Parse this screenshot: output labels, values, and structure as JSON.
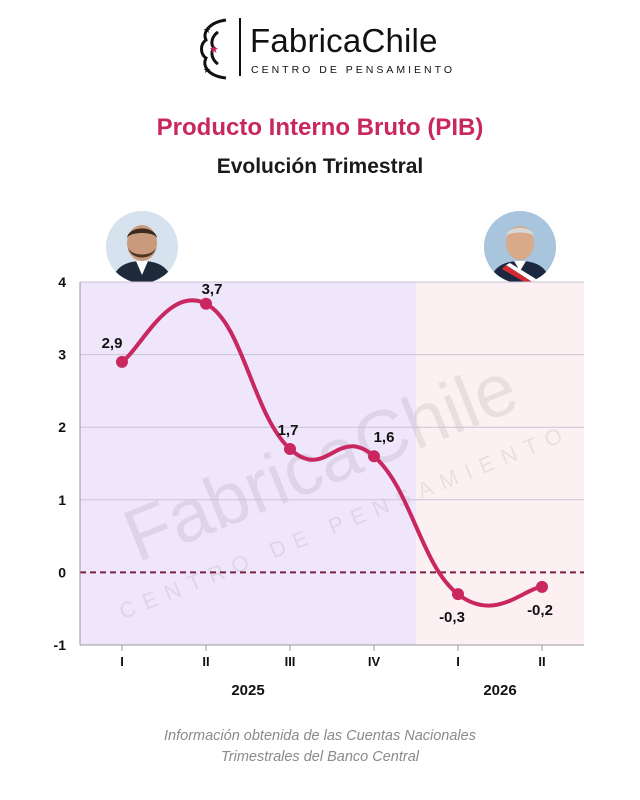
{
  "brand": {
    "name": "FabricaChile",
    "tagline": "CENTRO DE PENSAMIENTO",
    "accent_color": "#c8285f"
  },
  "header": {
    "title": "Producto Interno Bruto (PIB)",
    "subtitle": "Evolución Trimestral"
  },
  "portraits": {
    "left_icon": "portrait-man-suit",
    "right_icon": "portrait-man-presidential-sash"
  },
  "chart_data": {
    "type": "line",
    "categories": [
      "I",
      "II",
      "III",
      "IV",
      "I",
      "II"
    ],
    "groups": [
      {
        "label": "2025",
        "from": 0,
        "to": 3,
        "background": "#efe6fb"
      },
      {
        "label": "2026",
        "from": 4,
        "to": 5,
        "background": "#fcf0f2"
      }
    ],
    "series": [
      {
        "values": [
          2.9,
          3.7,
          1.7,
          1.6,
          -0.3,
          -0.2
        ],
        "color": "#c8285f"
      }
    ],
    "data_labels": [
      "2,9",
      "3,7",
      "1,7",
      "1,6",
      "-0,3",
      "-0,2"
    ],
    "y_ticks": [
      "4",
      "3",
      "2",
      "1",
      "0",
      "-1"
    ],
    "ylim": [
      -1,
      4
    ],
    "grid": true,
    "zero_line": "dashed",
    "watermark": {
      "name": "FabricaChile",
      "tagline": "CENTRO DE PENSAMIENTO"
    }
  },
  "footer": {
    "source_line_1": "Información obtenida de las Cuentas Nacionales",
    "source_line_2": "Trimestrales del Banco Central"
  }
}
